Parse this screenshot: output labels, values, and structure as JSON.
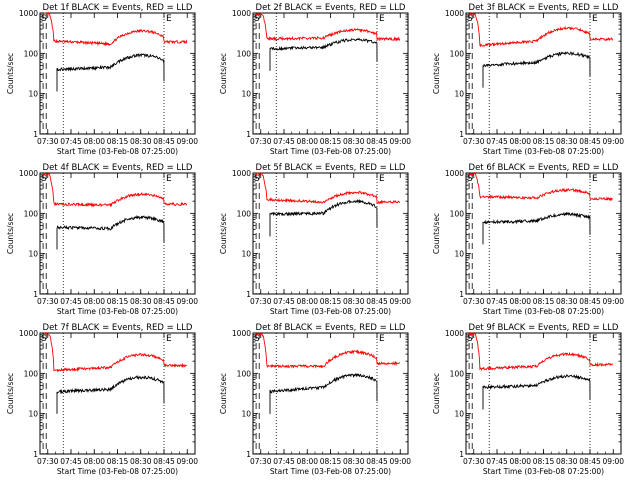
{
  "colors": {
    "events": "#000000",
    "lld": "#ff0000",
    "axis": "#000000",
    "background": "#ffffff"
  },
  "chart_data": [
    {
      "type": "line",
      "title": "Det 1f BLACK = Events, RED = LLD",
      "xlabel": "Start Time (03-Feb-08 07:25:00)",
      "ylabel": "Counts/sec",
      "yscale": "log",
      "ylim": [
        1,
        1000
      ],
      "x_ticks": [
        "07:30",
        "07:45",
        "08:00",
        "08:15",
        "08:30",
        "08:45",
        "09:00"
      ],
      "y_ticks": [
        "1",
        "10",
        "100",
        "1000"
      ],
      "annotations": [
        "S",
        "E"
      ],
      "series": [
        {
          "name": "Events",
          "level_start": 40,
          "level_mid": 45,
          "level_peak": 90,
          "start_time": "07:36",
          "end_time": "08:45"
        },
        {
          "name": "LLD",
          "level_start": 200,
          "level_mid": 170,
          "level_peak": 360
        }
      ]
    },
    {
      "type": "line",
      "title": "Det 2f BLACK = Events, RED = LLD",
      "xlabel": "Start Time (03-Feb-08 07:25:00)",
      "ylabel": "Counts/sec",
      "yscale": "log",
      "ylim": [
        1,
        1000
      ],
      "x_ticks": [
        "07:30",
        "07:45",
        "08:00",
        "08:15",
        "08:30",
        "08:45",
        "09:00"
      ],
      "y_ticks": [
        "1",
        "10",
        "100",
        "1000"
      ],
      "annotations": [
        "S",
        "E"
      ],
      "series": [
        {
          "name": "Events",
          "level_start": 130,
          "level_mid": 140,
          "level_peak": 220,
          "start_time": "07:36",
          "end_time": "08:45"
        },
        {
          "name": "LLD",
          "level_start": 230,
          "level_mid": 240,
          "level_peak": 380
        }
      ]
    },
    {
      "type": "line",
      "title": "Det 3f BLACK = Events, RED = LLD",
      "xlabel": "Start Time (03-Feb-08 07:25:00)",
      "ylabel": "Counts/sec",
      "yscale": "log",
      "ylim": [
        1,
        1000
      ],
      "x_ticks": [
        "07:30",
        "07:45",
        "08:00",
        "08:15",
        "08:30",
        "08:45",
        "09:00"
      ],
      "y_ticks": [
        "1",
        "10",
        "100",
        "1000"
      ],
      "annotations": [
        "S",
        "E"
      ],
      "series": [
        {
          "name": "Events",
          "level_start": 50,
          "level_mid": 60,
          "level_peak": 100,
          "start_time": "07:36",
          "end_time": "08:45"
        },
        {
          "name": "LLD",
          "level_start": 160,
          "level_mid": 200,
          "level_peak": 420
        }
      ]
    },
    {
      "type": "line",
      "title": "Det 4f BLACK = Events, RED = LLD",
      "xlabel": "Start Time (03-Feb-08 07:25:00)",
      "ylabel": "Counts/sec",
      "yscale": "log",
      "ylim": [
        1,
        1000
      ],
      "x_ticks": [
        "07:30",
        "07:45",
        "08:00",
        "08:15",
        "08:30",
        "08:45",
        "09:00"
      ],
      "y_ticks": [
        "1",
        "10",
        "100",
        "1000"
      ],
      "annotations": [
        "S",
        "E"
      ],
      "series": [
        {
          "name": "Events",
          "level_start": 45,
          "level_mid": 42,
          "level_peak": 80,
          "start_time": "07:36",
          "end_time": "08:45"
        },
        {
          "name": "LLD",
          "level_start": 170,
          "level_mid": 160,
          "level_peak": 300
        }
      ]
    },
    {
      "type": "line",
      "title": "Det 5f BLACK = Events, RED = LLD",
      "xlabel": "Start Time (03-Feb-08 07:25:00)",
      "ylabel": "Counts/sec",
      "yscale": "log",
      "ylim": [
        1,
        1000
      ],
      "x_ticks": [
        "07:30",
        "07:45",
        "08:00",
        "08:15",
        "08:30",
        "08:45",
        "09:00"
      ],
      "y_ticks": [
        "1",
        "10",
        "100",
        "1000"
      ],
      "annotations": [
        "S",
        "E"
      ],
      "series": [
        {
          "name": "Events",
          "level_start": 95,
          "level_mid": 100,
          "level_peak": 200,
          "start_time": "07:36",
          "end_time": "08:45"
        },
        {
          "name": "LLD",
          "level_start": 220,
          "level_mid": 190,
          "level_peak": 330
        }
      ]
    },
    {
      "type": "line",
      "title": "Det 6f BLACK = Events, RED = LLD",
      "xlabel": "Start Time (03-Feb-08 07:25:00)",
      "ylabel": "Counts/sec",
      "yscale": "log",
      "ylim": [
        1,
        1000
      ],
      "x_ticks": [
        "07:30",
        "07:45",
        "08:00",
        "08:15",
        "08:30",
        "08:45",
        "09:00"
      ],
      "y_ticks": [
        "1",
        "10",
        "100",
        "1000"
      ],
      "annotations": [
        "S",
        "E"
      ],
      "series": [
        {
          "name": "Events",
          "level_start": 60,
          "level_mid": 65,
          "level_peak": 95,
          "start_time": "07:36",
          "end_time": "08:45"
        },
        {
          "name": "LLD",
          "level_start": 260,
          "level_mid": 240,
          "level_peak": 380
        }
      ]
    },
    {
      "type": "line",
      "title": "Det 7f BLACK = Events, RED = LLD",
      "xlabel": "Start Time (03-Feb-08 07:25:00)",
      "ylabel": "Counts/sec",
      "yscale": "log",
      "ylim": [
        1,
        1000
      ],
      "x_ticks": [
        "07:30",
        "07:45",
        "08:00",
        "08:15",
        "08:30",
        "08:45",
        "09:00"
      ],
      "y_ticks": [
        "1",
        "10",
        "100",
        "1000"
      ],
      "annotations": [
        "S",
        "E"
      ],
      "series": [
        {
          "name": "Events",
          "level_start": 35,
          "level_mid": 40,
          "level_peak": 80,
          "start_time": "07:36",
          "end_time": "08:45"
        },
        {
          "name": "LLD",
          "level_start": 120,
          "level_mid": 140,
          "level_peak": 290
        }
      ]
    },
    {
      "type": "line",
      "title": "Det 8f BLACK = Events, RED = LLD",
      "xlabel": "Start Time (03-Feb-08 07:25:00)",
      "ylabel": "Counts/sec",
      "yscale": "log",
      "ylim": [
        1,
        1000
      ],
      "x_ticks": [
        "07:30",
        "07:45",
        "08:00",
        "08:15",
        "08:30",
        "08:45",
        "09:00"
      ],
      "y_ticks": [
        "1",
        "10",
        "100",
        "1000"
      ],
      "annotations": [
        "S",
        "E"
      ],
      "series": [
        {
          "name": "Events",
          "level_start": 35,
          "level_mid": 45,
          "level_peak": 90,
          "start_time": "07:36",
          "end_time": "08:45"
        },
        {
          "name": "LLD",
          "level_start": 150,
          "level_mid": 150,
          "level_peak": 340
        }
      ]
    },
    {
      "type": "line",
      "title": "Det 9f BLACK = Events, RED = LLD",
      "xlabel": "Start Time (03-Feb-08 07:25:00)",
      "ylabel": "Counts/sec",
      "yscale": "log",
      "ylim": [
        1,
        1000
      ],
      "x_ticks": [
        "07:30",
        "07:45",
        "08:00",
        "08:15",
        "08:30",
        "08:45",
        "09:00"
      ],
      "y_ticks": [
        "1",
        "10",
        "100",
        "1000"
      ],
      "annotations": [
        "S",
        "E"
      ],
      "series": [
        {
          "name": "Events",
          "level_start": 45,
          "level_mid": 50,
          "level_peak": 85,
          "start_time": "07:36",
          "end_time": "08:45"
        },
        {
          "name": "LLD",
          "level_start": 130,
          "level_mid": 150,
          "level_peak": 300
        }
      ]
    }
  ]
}
